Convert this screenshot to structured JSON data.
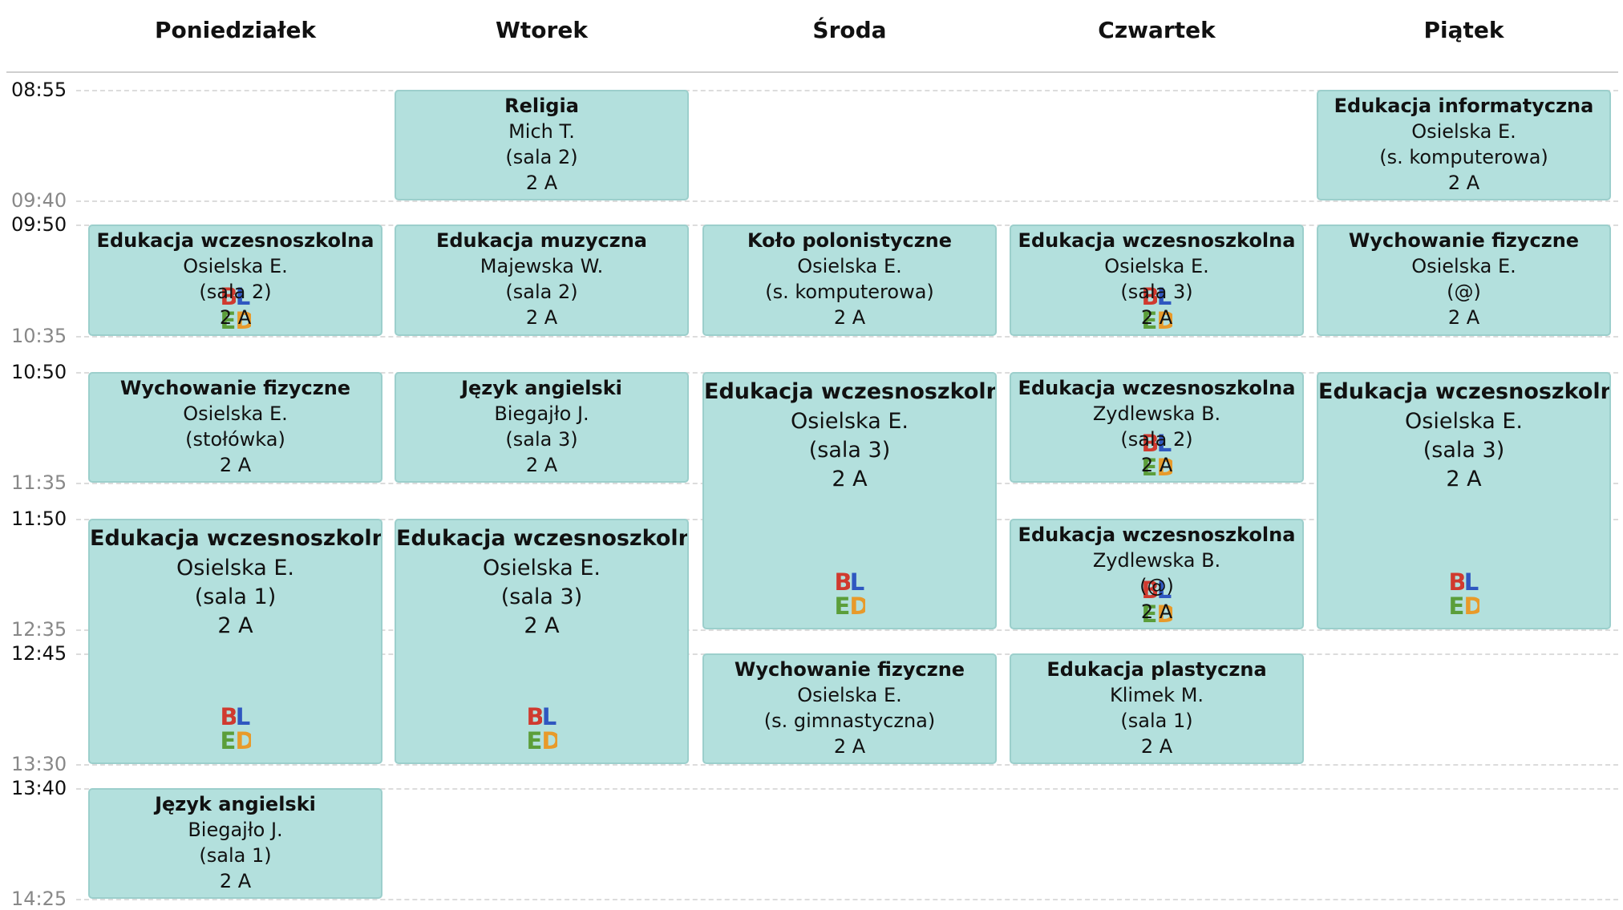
{
  "days": [
    "Poniedziałek",
    "Wtorek",
    "Środa",
    "Czwartek",
    "Piątek"
  ],
  "timeSlots": [
    {
      "start": "08:55",
      "end": "09:40"
    },
    {
      "start": "09:50",
      "end": "10:35"
    },
    {
      "start": "10:50",
      "end": "11:35"
    },
    {
      "start": "11:50",
      "end": "12:35"
    },
    {
      "start": "12:45",
      "end": "13:30"
    },
    {
      "start": "13:40",
      "end": "14:25"
    }
  ],
  "logo": {
    "letters": [
      "B",
      "L",
      "E",
      "D"
    ],
    "colors": [
      "#d03a2f",
      "#2f57c0",
      "#5b9e3a",
      "#e89a2a"
    ]
  },
  "lessonStyle": {
    "background": "#b3e0dd",
    "border": "#9ccfcc"
  },
  "lessons": [
    {
      "day": 0,
      "slot": 1,
      "span": 1,
      "subject": "Edukacja wczesnoszkolna",
      "teacher": "Osielska E.",
      "room": "(sala 2)",
      "class": "2 A",
      "logo": true
    },
    {
      "day": 0,
      "slot": 2,
      "span": 1,
      "subject": "Wychowanie fizyczne",
      "teacher": "Osielska E.",
      "room": "(stołówka)",
      "class": "2 A",
      "logo": false
    },
    {
      "day": 0,
      "slot": 3,
      "span": 2,
      "subject": "Edukacja wczesnoszkolna",
      "teacher": "Osielska E.",
      "room": "(sala 1)",
      "class": "2 A",
      "logo": true
    },
    {
      "day": 0,
      "slot": 5,
      "span": 1,
      "subject": "Język angielski",
      "teacher": "Biegajło J.",
      "room": "(sala 1)",
      "class": "2 A",
      "logo": false
    },
    {
      "day": 1,
      "slot": 0,
      "span": 1,
      "subject": "Religia",
      "teacher": "Mich T.",
      "room": "(sala 2)",
      "class": "2 A",
      "logo": false
    },
    {
      "day": 1,
      "slot": 1,
      "span": 1,
      "subject": "Edukacja muzyczna",
      "teacher": "Majewska W.",
      "room": "(sala 2)",
      "class": "2 A",
      "logo": false
    },
    {
      "day": 1,
      "slot": 2,
      "span": 1,
      "subject": "Język angielski",
      "teacher": "Biegajło J.",
      "room": "(sala 3)",
      "class": "2 A",
      "logo": false
    },
    {
      "day": 1,
      "slot": 3,
      "span": 2,
      "subject": "Edukacja wczesnoszkolna",
      "teacher": "Osielska E.",
      "room": "(sala 3)",
      "class": "2 A",
      "logo": true
    },
    {
      "day": 2,
      "slot": 1,
      "span": 1,
      "subject": "Koło polonistyczne",
      "teacher": "Osielska E.",
      "room": "(s. komputerowa)",
      "class": "2 A",
      "logo": false
    },
    {
      "day": 2,
      "slot": 2,
      "span": 2,
      "subject": "Edukacja wczesnoszkolna",
      "teacher": "Osielska E.",
      "room": "(sala 3)",
      "class": "2 A",
      "logo": true
    },
    {
      "day": 2,
      "slot": 4,
      "span": 1,
      "subject": "Wychowanie fizyczne",
      "teacher": "Osielska E.",
      "room": "(s. gimnastyczna)",
      "class": "2 A",
      "logo": false
    },
    {
      "day": 3,
      "slot": 1,
      "span": 1,
      "subject": "Edukacja wczesnoszkolna",
      "teacher": "Osielska E.",
      "room": "(sala 3)",
      "class": "2 A",
      "logo": true
    },
    {
      "day": 3,
      "slot": 2,
      "span": 1,
      "subject": "Edukacja wczesnoszkolna",
      "teacher": "Zydlewska B.",
      "room": "(sala 2)",
      "class": "2 A",
      "logo": true
    },
    {
      "day": 3,
      "slot": 3,
      "span": 1,
      "subject": "Edukacja wczesnoszkolna",
      "teacher": "Zydlewska B.",
      "room": "(@)",
      "class": "2 A",
      "logo": true
    },
    {
      "day": 3,
      "slot": 4,
      "span": 1,
      "subject": "Edukacja plastyczna",
      "teacher": "Klimek M.",
      "room": "(sala 1)",
      "class": "2 A",
      "logo": false
    },
    {
      "day": 4,
      "slot": 0,
      "span": 1,
      "subject": "Edukacja informatyczna",
      "teacher": "Osielska E.",
      "room": "(s. komputerowa)",
      "class": "2 A",
      "logo": false
    },
    {
      "day": 4,
      "slot": 1,
      "span": 1,
      "subject": "Wychowanie fizyczne",
      "teacher": "Osielska E.",
      "room": "(@)",
      "class": "2 A",
      "logo": false
    },
    {
      "day": 4,
      "slot": 2,
      "span": 2,
      "subject": "Edukacja wczesnoszkolna",
      "teacher": "Osielska E.",
      "room": "(sala 3)",
      "class": "2 A",
      "logo": true
    }
  ]
}
